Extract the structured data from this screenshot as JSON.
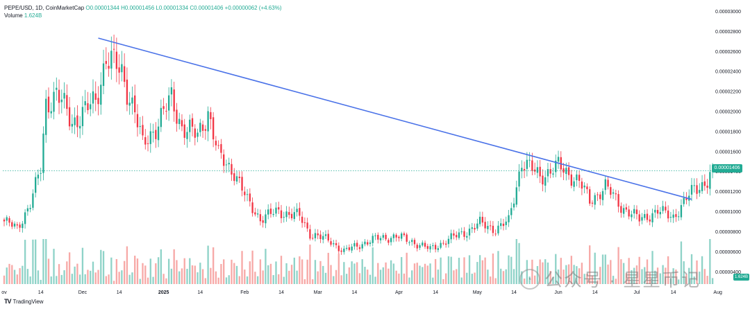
{
  "chart_data": {
    "type": "candlestick",
    "symbol_line": "PEPE/USD, 1D, CoinMarketCap",
    "ohlc_label": {
      "o": "O0.00001344",
      "h": "H0.00001456",
      "l": "L0.00001334",
      "c": "C0.00001406",
      "chg": "+0.00000062 (+4.63%)"
    },
    "volume_label": "Volume",
    "volume_value": "1.624B",
    "last_price": "0.00001406",
    "y_ticks": [
      "0.00000400",
      "0.00000600",
      "0.00000800",
      "0.00001000",
      "0.00001200",
      "0.00001400",
      "0.00001600",
      "0.00001800",
      "0.00002000",
      "0.00002200",
      "0.00002400",
      "0.00002600",
      "0.00002800",
      "0.00003000"
    ],
    "ylim": [
      2.6e-06,
      3e-05
    ],
    "x_ticks": [
      "ov",
      "14",
      "Dec",
      "14",
      "2025",
      "14",
      "Feb",
      "14",
      "Mar",
      "14",
      "Apr",
      "14",
      "May",
      "14",
      "Jun",
      "14",
      "Jul",
      "14",
      "Aug"
    ],
    "trendline": {
      "start_date": "2024-12-06",
      "start_price": 2.73e-05,
      "end_date": "2025-07-21",
      "end_price": 1.12e-05
    },
    "closes_anchor": [
      {
        "d": 0,
        "c": 9e-06
      },
      {
        "d": 5,
        "c": 8.3e-06
      },
      {
        "d": 10,
        "c": 1.08e-05
      },
      {
        "d": 14,
        "c": 1.42e-05
      },
      {
        "d": 16,
        "c": 2.08e-05
      },
      {
        "d": 20,
        "c": 2.18e-05
      },
      {
        "d": 26,
        "c": 1.89e-05
      },
      {
        "d": 30,
        "c": 1.98e-05
      },
      {
        "d": 35,
        "c": 2.1e-05
      },
      {
        "d": 39,
        "c": 2.55e-05
      },
      {
        "d": 45,
        "c": 2.38e-05
      },
      {
        "d": 50,
        "c": 2e-05
      },
      {
        "d": 53,
        "c": 1.65e-05
      },
      {
        "d": 58,
        "c": 1.85e-05
      },
      {
        "d": 64,
        "c": 2.12e-05
      },
      {
        "d": 68,
        "c": 1.85e-05
      },
      {
        "d": 74,
        "c": 1.75e-05
      },
      {
        "d": 78,
        "c": 2e-05
      },
      {
        "d": 82,
        "c": 1.55e-05
      },
      {
        "d": 88,
        "c": 1.4e-05
      },
      {
        "d": 93,
        "c": 1.1e-05
      },
      {
        "d": 98,
        "c": 9.3e-06
      },
      {
        "d": 105,
        "c": 1e-05
      },
      {
        "d": 113,
        "c": 9.5e-06
      },
      {
        "d": 117,
        "c": 7.8e-06
      },
      {
        "d": 125,
        "c": 7e-06
      },
      {
        "d": 130,
        "c": 6e-06
      },
      {
        "d": 137,
        "c": 6.8e-06
      },
      {
        "d": 143,
        "c": 7.3e-06
      },
      {
        "d": 150,
        "c": 7.5e-06
      },
      {
        "d": 156,
        "c": 7e-06
      },
      {
        "d": 163,
        "c": 6.2e-06
      },
      {
        "d": 170,
        "c": 7.2e-06
      },
      {
        "d": 177,
        "c": 8e-06
      },
      {
        "d": 182,
        "c": 8.8e-06
      },
      {
        "d": 188,
        "c": 8.2e-06
      },
      {
        "d": 193,
        "c": 9e-06
      },
      {
        "d": 198,
        "c": 1.5e-05
      },
      {
        "d": 205,
        "c": 1.35e-05
      },
      {
        "d": 212,
        "c": 1.45e-05
      },
      {
        "d": 220,
        "c": 1.3e-05
      },
      {
        "d": 224,
        "c": 1.1e-05
      },
      {
        "d": 230,
        "c": 1.25e-05
      },
      {
        "d": 236,
        "c": 1.05e-05
      },
      {
        "d": 243,
        "c": 9.2e-06
      },
      {
        "d": 250,
        "c": 1e-05
      },
      {
        "d": 256,
        "c": 9.5e-06
      },
      {
        "d": 260,
        "c": 1.08e-05
      },
      {
        "d": 264,
        "c": 1.23e-05
      },
      {
        "d": 269,
        "c": 1.3e-05
      },
      {
        "d": 271,
        "c": 1.41e-05
      }
    ],
    "x_start_date": "2024-10-31",
    "x_end_date": "2025-07-21"
  },
  "watermark": {
    "icon": "wechat-icon",
    "text": "公众号 · 星星币记"
  },
  "brand": {
    "logo": "TV",
    "text": "TradingView"
  }
}
